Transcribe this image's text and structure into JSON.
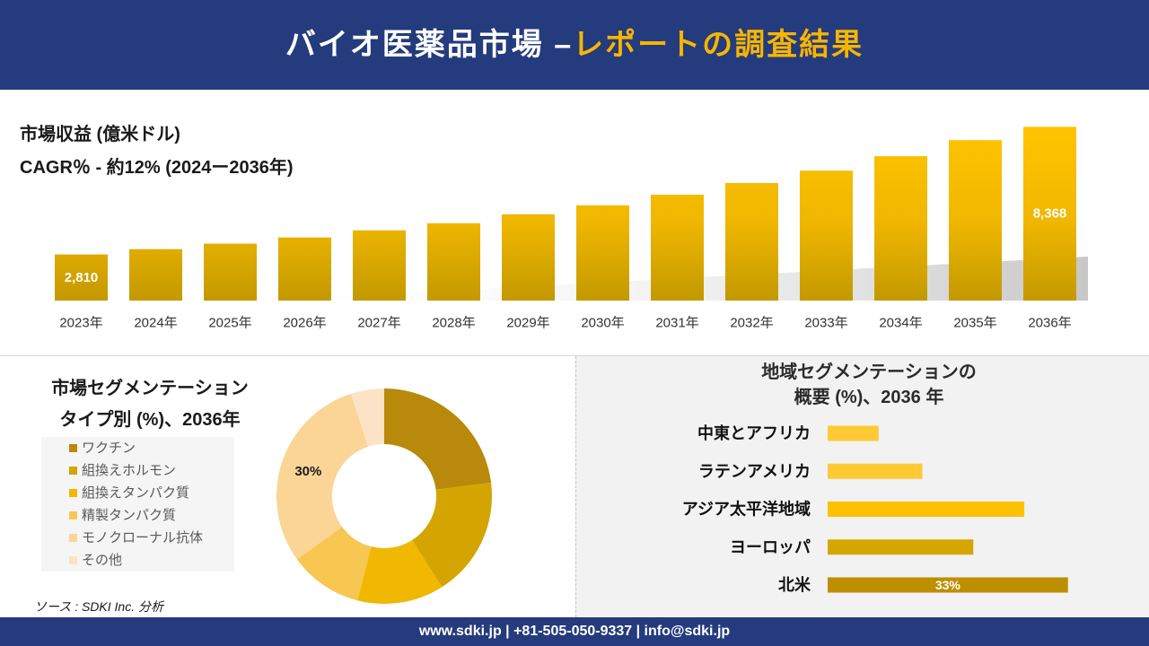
{
  "header": {
    "title_main": "バイオ医薬品市場 –",
    "title_highlight": "レポートの調査結果"
  },
  "colors": {
    "navy": "#243b7d",
    "title_highlight": "#f7b500",
    "region_panel_bg": "#f2f2f2"
  },
  "chart_data": [
    {
      "type": "bar",
      "title": "市場収益 (億米ドル)",
      "subtitle": "CAGR％ - 約12% (2024ー2036年)",
      "categories": [
        "2023年",
        "2024年",
        "2025年",
        "2026年",
        "2027年",
        "2028年",
        "2029年",
        "2030年",
        "2031年",
        "2032年",
        "2033年",
        "2034年",
        "2035年",
        "2036年"
      ],
      "values": [
        2810,
        3040,
        3280,
        3550,
        3860,
        4170,
        4560,
        4950,
        5410,
        5920,
        6460,
        7090,
        7790,
        8368
      ],
      "data_labels": [
        "2,810",
        "",
        "",
        "",
        "",
        "",
        "",
        "",
        "",
        "",
        "",
        "",
        "",
        "8,368"
      ],
      "ylim": [
        800,
        8500
      ],
      "grid": false,
      "legend": "none",
      "bar_colors": [
        "#ffc400",
        "#f0b700",
        "#c39900"
      ]
    },
    {
      "type": "pie",
      "style": "donut",
      "title_lines": [
        "市場セグメンテーション",
        "タイプ別 (%)、2036年"
      ],
      "categories": [
        "ワクチン",
        "組換えホルモン",
        "組換えタンパク質",
        "精製タンパク質",
        "モノクローナル抗体",
        "その他"
      ],
      "values": [
        23,
        18,
        13,
        11,
        30,
        5
      ],
      "data_labels": [
        "",
        "",
        "",
        "",
        "30%",
        ""
      ],
      "colors": [
        "#b8890a",
        "#d4a500",
        "#f0b800",
        "#f8c752",
        "#fbd596",
        "#fde3c6"
      ],
      "legend": "left"
    },
    {
      "type": "bar",
      "orientation": "horizontal",
      "title_lines": [
        "地域セグメンテーションの",
        "概要 (%)、2036 年"
      ],
      "categories": [
        "中東とアフリカ",
        "ラテンアメリカ",
        "アジア太平洋地域",
        "ヨーロッパ",
        "北米"
      ],
      "values": [
        7,
        13,
        27,
        20,
        33
      ],
      "data_labels": [
        "",
        "",
        "",
        "",
        "33%"
      ],
      "colors": [
        "#fec934",
        "#fec934",
        "#fdc100",
        "#d6a600",
        "#bd8f00"
      ],
      "xlim": [
        0,
        35
      ],
      "grid": false,
      "legend": "none"
    }
  ],
  "source": "ソース : SDKI Inc. 分析",
  "footer": {
    "contact": "www.sdki.jp | +81-505-050-9337 | info@sdki.jp"
  }
}
